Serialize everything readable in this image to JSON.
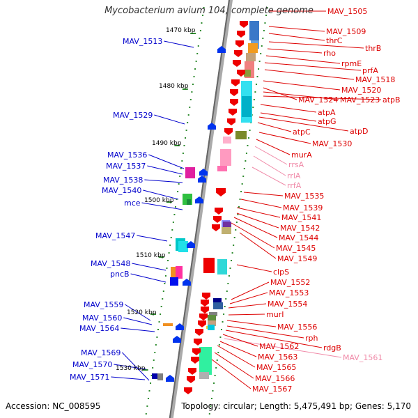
{
  "title": "Mycobacterium avium 104, complete genome",
  "footer": {
    "accession": "Accession: NC_008595",
    "summary": "Topology: circular; Length: 5,475,491 bp; Genes: 5,170"
  },
  "colors": {
    "background": "#ffffff",
    "backbone": "#888888",
    "tick": "#2e8b2e",
    "minus_label": "#0000cc",
    "plus_label": "#dd0000",
    "rna_label": "#f08aa8",
    "plus_arrow": "#ee0000",
    "minus_arrow": "#0033ee"
  },
  "scale": {
    "unit": "kbp",
    "ticks": [
      {
        "label": "1470 kbp",
        "kb": 1470
      },
      {
        "label": "1480 kbp",
        "kb": 1480
      },
      {
        "label": "1490 kbp",
        "kb": 1490
      },
      {
        "label": "1500 kbp",
        "kb": 1500
      },
      {
        "label": "1510 kbp",
        "kb": 1510
      },
      {
        "label": "1520 kbp",
        "kb": 1520
      },
      {
        "label": "1530 kbp",
        "kb": 1530
      }
    ]
  },
  "minus_strand_labels": [
    "MAV_1513",
    "MAV_1529",
    "MAV_1536",
    "MAV_1537",
    "MAV_1538",
    "MAV_1540",
    "mce",
    "MAV_1547",
    "MAV_1548",
    "pncB",
    "MAV_1559",
    "MAV_1560",
    "MAV_1564",
    "MAV_1569",
    "MAV_1570",
    "MAV_1571"
  ],
  "plus_strand_labels": [
    "MAV_1505",
    "MAV_1509",
    "thrC",
    "thrB",
    "rho",
    "rpmE",
    "prfA",
    "MAV_1518",
    "MAV_1520",
    "MAV_1524",
    "MAV_1523",
    "atpB",
    "atpA",
    "atpG",
    "atpD",
    "atpC",
    "MAV_1530",
    "murA",
    "rrsA",
    "rrlA",
    "rrfA",
    "MAV_1535",
    "MAV_1539",
    "MAV_1541",
    "MAV_1542",
    "MAV_1544",
    "MAV_1545",
    "MAV_1549",
    "clpS",
    "MAV_1552",
    "MAV_1553",
    "MAV_1554",
    "murI",
    "MAV_1556",
    "rph",
    "rdgB",
    "MAV_1561",
    "MAV_1562",
    "MAV_1563",
    "MAV_1565",
    "MAV_1566",
    "MAV_1567"
  ],
  "rna_genes": [
    "rrsA",
    "rrlA",
    "rrfA",
    "MAV_1561"
  ]
}
